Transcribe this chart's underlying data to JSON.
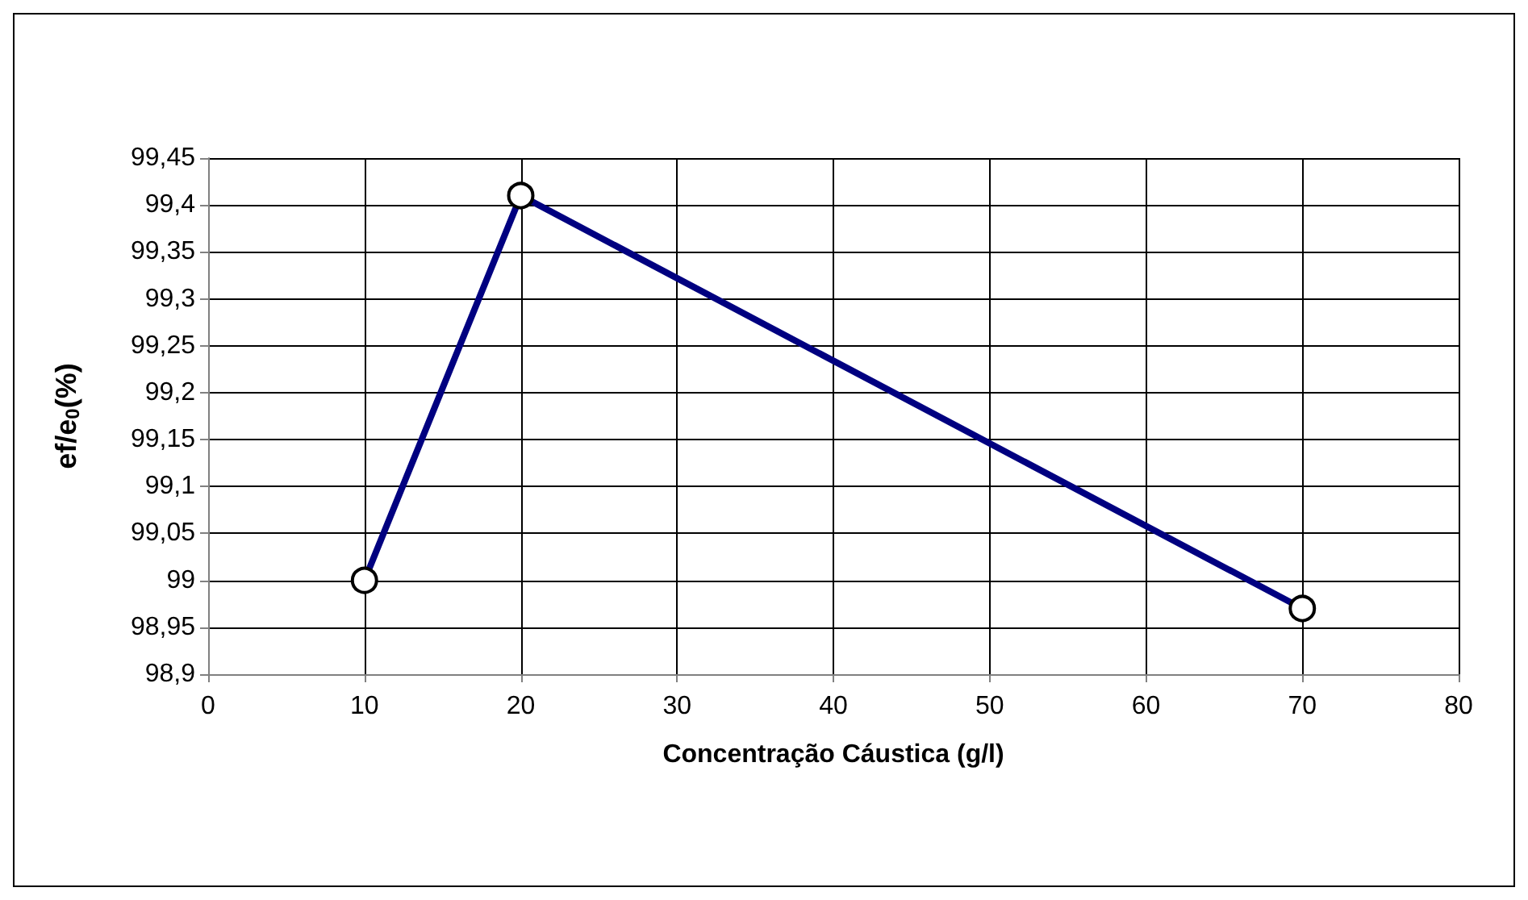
{
  "chart_data": {
    "type": "line",
    "xlabel": "Concentração Cáustica (g/l)",
    "ylabel": "ef/e$_{0}$(%)",
    "x": [
      10,
      20,
      70
    ],
    "series": [
      {
        "color": "#000080",
        "values": [
          99,
          99.41,
          98.97
        ]
      }
    ],
    "xlim": [
      0,
      80
    ],
    "xticks": [
      0,
      10,
      20,
      30,
      40,
      50,
      60,
      70,
      80
    ],
    "ylim": [
      98.9,
      99.45
    ],
    "yticks": [
      {
        "value": 98.9,
        "label": "98,9"
      },
      {
        "value": 98.95,
        "label": "98,95"
      },
      {
        "value": 99,
        "label": "99"
      },
      {
        "value": 99.05,
        "label": "99,05"
      },
      {
        "value": 99.1,
        "label": "99,1"
      },
      {
        "value": 99.15,
        "label": "99,15"
      },
      {
        "value": 99.2,
        "label": "99,2"
      },
      {
        "value": 99.25,
        "label": "99,25"
      },
      {
        "value": 99.3,
        "label": "99,3"
      },
      {
        "value": 99.35,
        "label": "99,35"
      },
      {
        "value": 99.4,
        "label": "99,4"
      },
      {
        "value": 99.45,
        "label": "99,45"
      }
    ],
    "grid": true,
    "marker": "circle",
    "line_style": "solid"
  }
}
